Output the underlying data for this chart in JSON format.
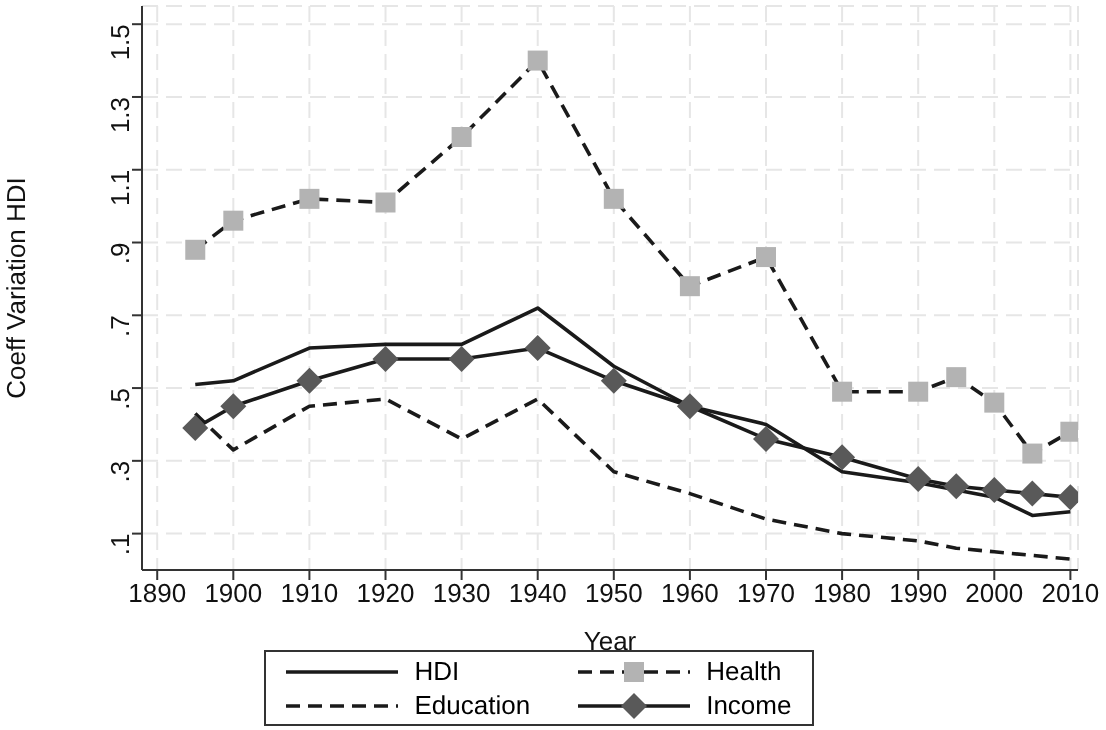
{
  "chart_data": {
    "type": "line",
    "xlabel": "Year",
    "ylabel": "Coeff Variation HDI",
    "xlim": [
      1888,
      2011
    ],
    "xticks": [
      1890,
      1900,
      1910,
      1920,
      1930,
      1940,
      1950,
      1960,
      1970,
      1980,
      1990,
      2000,
      2010
    ],
    "ylim": [
      0,
      1.55
    ],
    "yticks": [
      {
        "value": 0.1,
        "label": ".1"
      },
      {
        "value": 0.3,
        "label": ".3"
      },
      {
        "value": 0.5,
        "label": ".5"
      },
      {
        "value": 0.7,
        "label": ".7"
      },
      {
        "value": 0.9,
        "label": ".9"
      },
      {
        "value": 1.1,
        "label": "1.1"
      },
      {
        "value": 1.3,
        "label": "1.3"
      },
      {
        "value": 1.5,
        "label": "1.5"
      }
    ],
    "grid": true,
    "legend": "bottom",
    "series": [
      {
        "name": "HDI",
        "color": "#1a1a1a",
        "marker": "none",
        "line_style": "solid",
        "x": [
          1895,
          1900,
          1910,
          1920,
          1930,
          1940,
          1950,
          1960,
          1970,
          1980,
          1990,
          2000,
          2005,
          2010
        ],
        "values": [
          0.51,
          0.52,
          0.61,
          0.62,
          0.62,
          0.72,
          0.56,
          0.45,
          0.4,
          0.27,
          0.24,
          0.2,
          0.15,
          0.16
        ]
      },
      {
        "name": "Health",
        "color": "#b3b3b3",
        "marker": "square",
        "line_style": "dashed",
        "x": [
          1895,
          1900,
          1910,
          1920,
          1930,
          1940,
          1950,
          1960,
          1970,
          1980,
          1990,
          1995,
          2000,
          2005,
          2010
        ],
        "values": [
          0.88,
          0.96,
          1.02,
          1.01,
          1.19,
          1.4,
          1.02,
          0.78,
          0.86,
          0.49,
          0.49,
          0.53,
          0.46,
          0.32,
          0.38
        ]
      },
      {
        "name": "Education",
        "color": "#1a1a1a",
        "marker": "none",
        "line_style": "dashed",
        "x": [
          1895,
          1900,
          1910,
          1920,
          1930,
          1940,
          1950,
          1960,
          1970,
          1980,
          1990,
          1995,
          2000,
          2005,
          2010
        ],
        "values": [
          0.43,
          0.33,
          0.45,
          0.47,
          0.36,
          0.47,
          0.27,
          0.21,
          0.14,
          0.1,
          0.08,
          0.06,
          0.05,
          0.04,
          0.03
        ]
      },
      {
        "name": "Income",
        "color": "#595959",
        "marker": "diamond",
        "line_style": "solid",
        "x": [
          1895,
          1900,
          1910,
          1920,
          1930,
          1940,
          1950,
          1960,
          1970,
          1980,
          1990,
          1995,
          2000,
          2005,
          2010
        ],
        "values": [
          0.39,
          0.45,
          0.52,
          0.58,
          0.58,
          0.61,
          0.52,
          0.45,
          0.36,
          0.31,
          0.25,
          0.23,
          0.22,
          0.21,
          0.2
        ]
      }
    ]
  }
}
